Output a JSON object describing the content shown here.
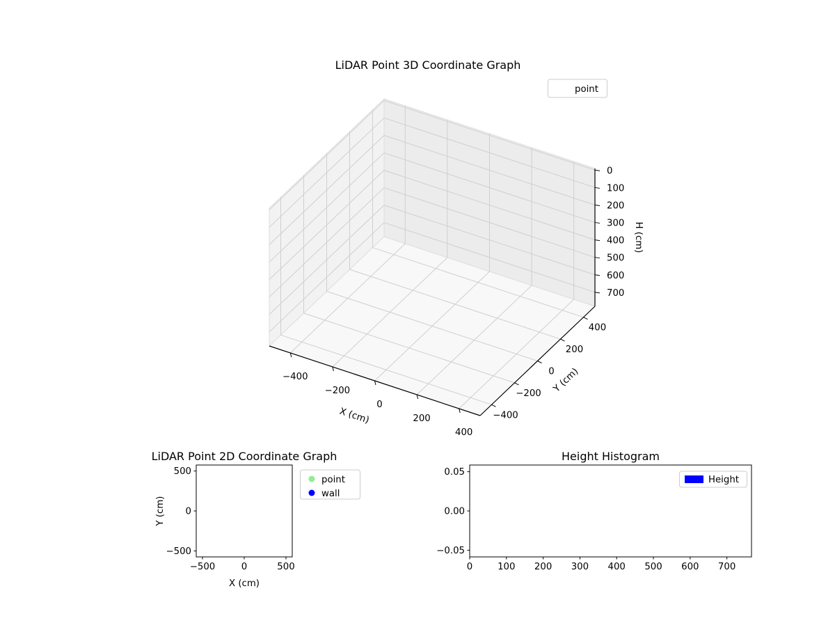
{
  "figure": {
    "background": "#ffffff"
  },
  "chart_data": [
    {
      "type": "scatter",
      "projection": "3d",
      "title": "LiDAR Point 3D Coordinate Graph",
      "xlabel": "X (cm)",
      "ylabel": "Y (cm)",
      "zlabel": "H (cm)",
      "xlim": [
        -500,
        500
      ],
      "ylim": [
        -500,
        500
      ],
      "zlim": [
        0,
        780
      ],
      "zaxis_inverted": true,
      "grid": true,
      "xticks": {
        "values": [
          -400,
          -200,
          0,
          200,
          400
        ],
        "labels": [
          "−400",
          "−200",
          "0",
          "200",
          "400"
        ]
      },
      "yticks": {
        "values": [
          -400,
          -200,
          0,
          200,
          400
        ],
        "labels": [
          "−400",
          "−200",
          "0",
          "200",
          "400"
        ]
      },
      "zticks": {
        "values": [
          0,
          100,
          200,
          300,
          400,
          500,
          600,
          700
        ],
        "labels": [
          "0",
          "100",
          "200",
          "300",
          "400",
          "500",
          "600",
          "700"
        ]
      },
      "legend": {
        "position": "upper-right",
        "entries": [
          {
            "label": "point",
            "marker": "none",
            "color": ""
          }
        ]
      },
      "series": [
        {
          "name": "point",
          "points": []
        }
      ]
    },
    {
      "type": "scatter",
      "projection": "2d",
      "title": "LiDAR Point 2D Coordinate Graph",
      "xlabel": "X (cm)",
      "ylabel": "Y (cm)",
      "xlim": [
        -575,
        575
      ],
      "ylim": [
        -575,
        575
      ],
      "grid": false,
      "xticks": {
        "values": [
          -500,
          0,
          500
        ],
        "labels": [
          "−500",
          "0",
          "500"
        ]
      },
      "yticks": {
        "values": [
          500,
          0,
          -500
        ],
        "labels": [
          "500",
          "0",
          "−500"
        ]
      },
      "legend": {
        "position": "outside-right",
        "entries": [
          {
            "label": "point",
            "marker": "circle",
            "color": "#90ee90"
          },
          {
            "label": "wall",
            "marker": "circle",
            "color": "#0000ff"
          }
        ]
      },
      "series": [
        {
          "name": "point",
          "color": "#90ee90",
          "points": []
        },
        {
          "name": "wall",
          "color": "#0000ff",
          "points": []
        }
      ]
    },
    {
      "type": "histogram",
      "title": "Height Histogram",
      "xlabel": "",
      "ylabel": "",
      "xlim": [
        0,
        767
      ],
      "ylim": [
        -0.0585,
        0.0585
      ],
      "grid": false,
      "xticks": {
        "values": [
          0,
          100,
          200,
          300,
          400,
          500,
          600,
          700
        ],
        "labels": [
          "0",
          "100",
          "200",
          "300",
          "400",
          "500",
          "600",
          "700"
        ]
      },
      "yticks": {
        "values": [
          0.05,
          0,
          -0.05
        ],
        "labels": [
          "0.05",
          "0.00",
          "−0.05"
        ]
      },
      "legend": {
        "position": "upper-right-inside",
        "entries": [
          {
            "label": "Height",
            "marker": "rect",
            "color": "#0000ff"
          }
        ]
      },
      "values": []
    }
  ]
}
